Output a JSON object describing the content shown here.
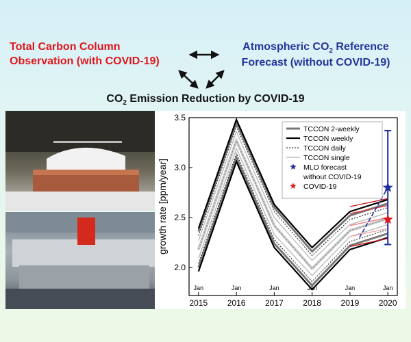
{
  "header": {
    "left_line1": "Total Carbon Column",
    "left_line2": "Observation (with COVID-19)",
    "right_line1_a": "Atmospheric CO",
    "right_line1_sub": "2",
    "right_line1_b": " Reference",
    "right_line2": "Forecast (without COVID-19)",
    "bottom_a": "CO",
    "bottom_sub": "2",
    "bottom_b": " Emission Reduction by COVID-19",
    "left_color": "#e0161b",
    "right_color": "#23359a"
  },
  "photos": {
    "top": "tccon-instrument-dome-photo",
    "bottom": "spectrometer-lab-photo"
  },
  "chart_data": {
    "type": "line",
    "ylabel": "growth rate [ppm/year]",
    "ylim": [
      1.72,
      3.5
    ],
    "yticks": [
      2.0,
      2.5,
      3.0,
      3.5
    ],
    "xlim": [
      2014.75,
      2020.25
    ],
    "xticks": [
      2015,
      2016,
      2017,
      2018,
      2019,
      2020
    ],
    "jan_label": "Jan",
    "x": [
      2015,
      2016,
      2017,
      2018,
      2019,
      2020
    ],
    "series": [
      {
        "name": "TCCON 2-weekly",
        "style": "gray-thick",
        "color": "#777777",
        "bands": [
          [
            2.36,
            3.45,
            2.6,
            2.16,
            2.52,
            2.64
          ],
          [
            2.0,
            3.1,
            2.24,
            1.82,
            2.22,
            2.34
          ]
        ]
      },
      {
        "name": "TCCON weekly",
        "style": "black",
        "color": "#000000",
        "bands": [
          [
            2.39,
            3.48,
            2.63,
            2.2,
            2.56,
            2.68
          ],
          [
            1.96,
            3.06,
            2.2,
            1.78,
            2.18,
            2.3
          ]
        ]
      },
      {
        "name": "TCCON daily",
        "style": "dotted",
        "color": "#333333",
        "bands": [
          [
            2.32,
            3.41,
            2.56,
            2.12,
            2.48,
            2.6
          ],
          [
            2.04,
            3.14,
            2.28,
            1.86,
            2.26,
            2.38
          ]
        ]
      },
      {
        "name": "TCCON single",
        "style": "light",
        "color": "#bbbbbb",
        "bands": [
          [
            2.27,
            3.36,
            2.5,
            2.07,
            2.43,
            2.55
          ],
          [
            2.09,
            3.19,
            2.33,
            1.92,
            2.31,
            2.43
          ]
        ]
      }
    ],
    "mean_line": [
      2.18,
      3.27,
      2.42,
      1.99,
      2.37,
      2.49
    ],
    "red_lines": [
      [
        2.61,
        2.69
      ],
      [
        2.54,
        2.62
      ],
      [
        2.42,
        2.5
      ],
      [
        2.31,
        2.39
      ],
      [
        2.21,
        2.29
      ]
    ],
    "red_x": [
      2019,
      2020
    ],
    "forecast": {
      "name": "MLO forecast",
      "name2": "without COVID-19",
      "x": 2020,
      "value": 2.8,
      "error": [
        2.23,
        3.37
      ],
      "dash_from": [
        2019.25,
        2.3
      ],
      "color": "#1f2e9c"
    },
    "covid": {
      "name": "COVID-19",
      "x": 2020,
      "value": 2.48,
      "color": "#e0161b"
    },
    "grid": false,
    "legend_position": "top-right"
  }
}
